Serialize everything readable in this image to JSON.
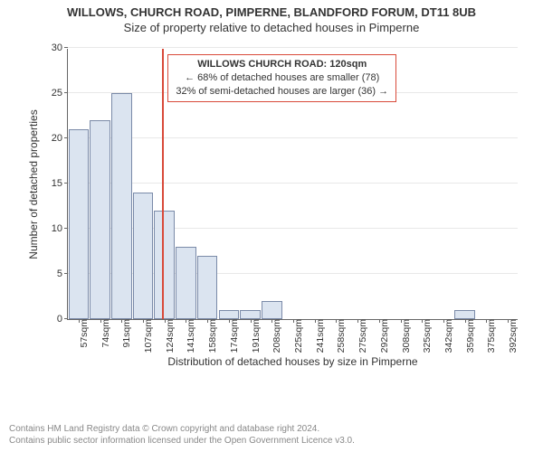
{
  "titles": {
    "main": "WILLOWS, CHURCH ROAD, PIMPERNE, BLANDFORD FORUM, DT11 8UB",
    "sub": "Size of property relative to detached houses in Pimperne"
  },
  "chart": {
    "type": "histogram",
    "ylabel": "Number of detached properties",
    "xlabel": "Distribution of detached houses by size in Pimperne",
    "ylim": [
      0,
      30
    ],
    "ytick_step": 5,
    "bar_fill": "#dbe4f0",
    "bar_stroke": "#7a8aa8",
    "grid_color": "#e8e8e8",
    "axis_color": "#666666",
    "background": "#ffffff",
    "categories": [
      "57sqm",
      "74sqm",
      "91sqm",
      "107sqm",
      "124sqm",
      "141sqm",
      "158sqm",
      "174sqm",
      "191sqm",
      "208sqm",
      "225sqm",
      "241sqm",
      "258sqm",
      "275sqm",
      "292sqm",
      "308sqm",
      "325sqm",
      "342sqm",
      "359sqm",
      "375sqm",
      "392sqm"
    ],
    "values": [
      21,
      22,
      25,
      14,
      12,
      8,
      7,
      1,
      1,
      2,
      0,
      0,
      0,
      0,
      0,
      0,
      0,
      0,
      1,
      0,
      0
    ],
    "label_fontsize": 12,
    "tick_fontsize": 11,
    "bar_gap_ratio": 0.05
  },
  "marker": {
    "position_index": 3.9,
    "color": "#d94a3a",
    "callout_border": "#d94a3a",
    "line1": "WILLOWS CHURCH ROAD: 120sqm",
    "line2": "← 68% of detached houses are smaller (78)",
    "line3": "32% of semi-detached houses are larger (36) →"
  },
  "footer": {
    "line1": "Contains HM Land Registry data © Crown copyright and database right 2024.",
    "line2": "Contains public sector information licensed under the Open Government Licence v3.0."
  }
}
